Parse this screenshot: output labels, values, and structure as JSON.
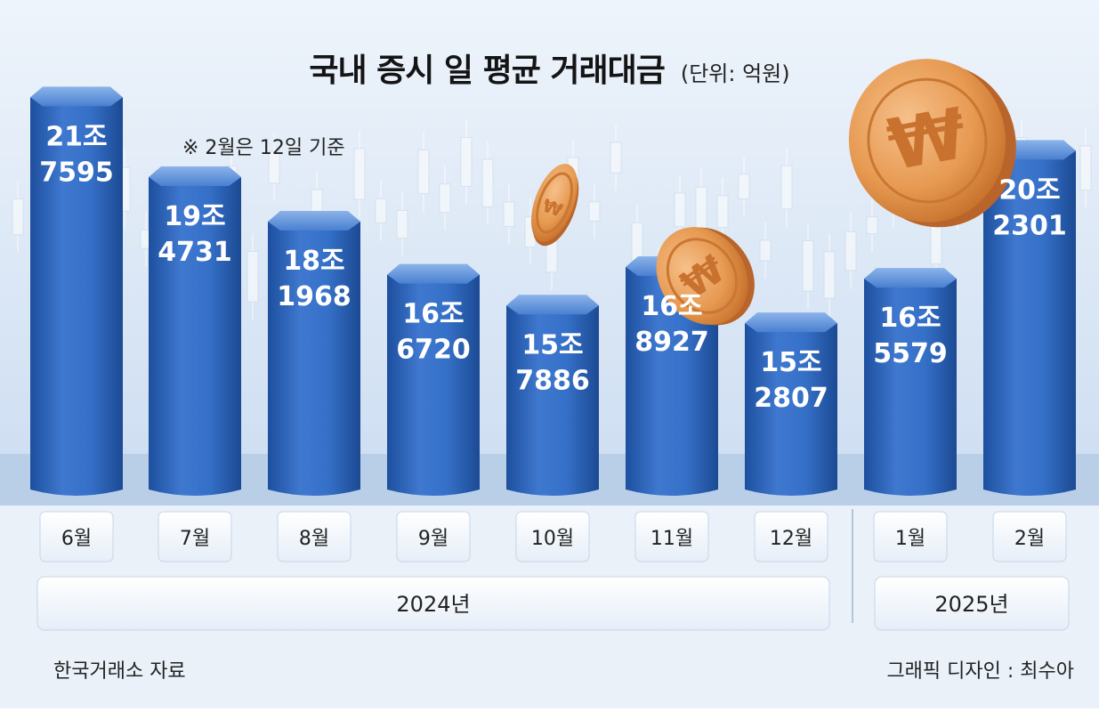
{
  "title": "국내 증시 일 평균 거래대금",
  "unit": "(단위: 억원)",
  "note": "※ 2월은 12일 기준",
  "source": "한국거래소 자료",
  "credit": "그래픽 디자인 : 최수아",
  "colors": {
    "bar_top": "#5b8fd8",
    "bar_mid": "#2f67bf",
    "bar_dark": "#1f4e9a",
    "bg": "#dbe8f7",
    "floor": "#b7cde6",
    "coin": "#e8974f"
  },
  "chart_data": {
    "type": "bar",
    "title": "국내 증시 일 평균 거래대금",
    "ylabel": "(단위: 억원)",
    "categories": [
      "6월",
      "7월",
      "8월",
      "9월",
      "10월",
      "11월",
      "12월",
      "1월",
      "2월"
    ],
    "years": [
      {
        "label": "2024년",
        "months": [
          "6월",
          "7월",
          "8월",
          "9월",
          "10월",
          "11월",
          "12월"
        ]
      },
      {
        "label": "2025년",
        "months": [
          "1월",
          "2월"
        ]
      }
    ],
    "values": [
      217595,
      194731,
      181968,
      166720,
      157886,
      168927,
      152807,
      165579,
      202301
    ],
    "labels": [
      [
        "21조",
        "7595"
      ],
      [
        "19조",
        "4731"
      ],
      [
        "18조",
        "1968"
      ],
      [
        "16조",
        "6720"
      ],
      [
        "15조",
        "7886"
      ],
      [
        "16조",
        "8927"
      ],
      [
        "15조",
        "2807"
      ],
      [
        "16조",
        "5579"
      ],
      [
        "20조",
        "2301"
      ]
    ],
    "ylim": [
      100000,
      220000
    ],
    "grid": false,
    "legend": "none"
  }
}
